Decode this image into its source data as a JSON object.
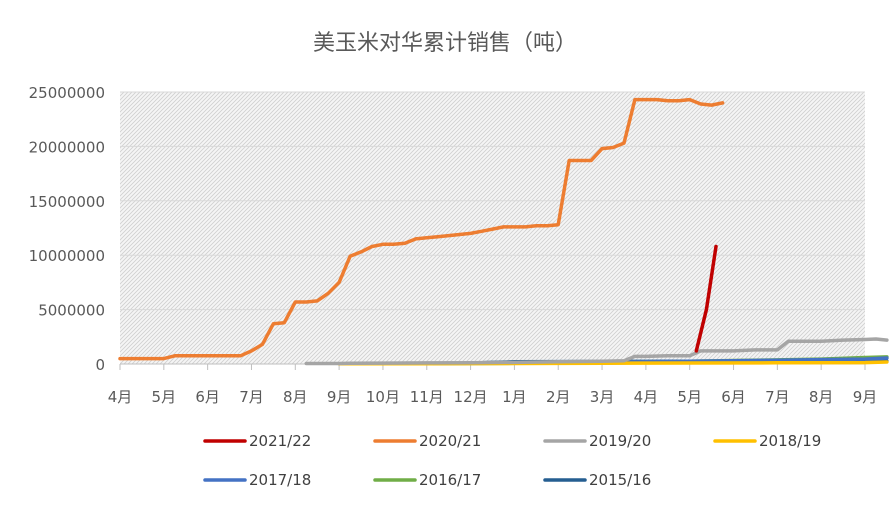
{
  "chart_data": {
    "type": "line",
    "title": "美玉米对华累计销售（吨）",
    "xlabel": "",
    "ylabel": "",
    "ylim": [
      0,
      25000000
    ],
    "yticks": [
      "0",
      "5000000",
      "10000000",
      "15000000",
      "20000000",
      "25000000"
    ],
    "xticks": [
      "4月",
      "5月",
      "6月",
      "7月",
      "8月",
      "9月",
      "10月",
      "11月",
      "12月",
      "1月",
      "2月",
      "3月",
      "4月",
      "5月",
      "6月",
      "7月",
      "8月",
      "9月"
    ],
    "x_unit": "months from first April tick",
    "grid": true,
    "legend_position": "bottom",
    "series": [
      {
        "name": "2021/22",
        "color": "#c00000",
        "points": [
          [
            13.15,
            1200000
          ],
          [
            13.38,
            5000000
          ],
          [
            13.6,
            10800000
          ]
        ]
      },
      {
        "name": "2020/21",
        "color": "#ed7d31",
        "points": [
          [
            0,
            500000
          ],
          [
            0.25,
            500000
          ],
          [
            0.5,
            500000
          ],
          [
            0.75,
            500000
          ],
          [
            1,
            500000
          ],
          [
            1.25,
            750000
          ],
          [
            1.5,
            750000
          ],
          [
            1.75,
            750000
          ],
          [
            2,
            750000
          ],
          [
            2.25,
            750000
          ],
          [
            2.5,
            750000
          ],
          [
            2.75,
            750000
          ],
          [
            3,
            1200000
          ],
          [
            3.25,
            1800000
          ],
          [
            3.5,
            3700000
          ],
          [
            3.75,
            3800000
          ],
          [
            4,
            5700000
          ],
          [
            4.25,
            5700000
          ],
          [
            4.5,
            5800000
          ],
          [
            4.75,
            6500000
          ],
          [
            5,
            7500000
          ],
          [
            5.25,
            9900000
          ],
          [
            5.5,
            10300000
          ],
          [
            5.75,
            10800000
          ],
          [
            6,
            11000000
          ],
          [
            6.25,
            11000000
          ],
          [
            6.5,
            11100000
          ],
          [
            6.75,
            11500000
          ],
          [
            7,
            11600000
          ],
          [
            7.25,
            11700000
          ],
          [
            7.5,
            11800000
          ],
          [
            7.75,
            11900000
          ],
          [
            8,
            12000000
          ],
          [
            8.25,
            12200000
          ],
          [
            8.5,
            12400000
          ],
          [
            8.75,
            12600000
          ],
          [
            9,
            12600000
          ],
          [
            9.25,
            12600000
          ],
          [
            9.5,
            12700000
          ],
          [
            9.75,
            12700000
          ],
          [
            10,
            12800000
          ],
          [
            10.25,
            18700000
          ],
          [
            10.5,
            18700000
          ],
          [
            10.75,
            18700000
          ],
          [
            11,
            19800000
          ],
          [
            11.25,
            19900000
          ],
          [
            11.5,
            20300000
          ],
          [
            11.75,
            24300000
          ],
          [
            12,
            24300000
          ],
          [
            12.25,
            24300000
          ],
          [
            12.5,
            24200000
          ],
          [
            12.75,
            24200000
          ],
          [
            13,
            24300000
          ],
          [
            13.25,
            23900000
          ],
          [
            13.5,
            23800000
          ],
          [
            13.75,
            24000000
          ]
        ]
      },
      {
        "name": "2019/20",
        "color": "#a5a5a5",
        "points": [
          [
            4.25,
            50000
          ],
          [
            4.5,
            50000
          ],
          [
            4.75,
            50000
          ],
          [
            5,
            50000
          ],
          [
            5.25,
            70000
          ],
          [
            6,
            80000
          ],
          [
            7,
            100000
          ],
          [
            8,
            120000
          ],
          [
            9,
            150000
          ],
          [
            10,
            200000
          ],
          [
            11,
            250000
          ],
          [
            11.5,
            300000
          ],
          [
            11.75,
            700000
          ],
          [
            12,
            700000
          ],
          [
            12.5,
            750000
          ],
          [
            13,
            750000
          ],
          [
            13.25,
            1200000
          ],
          [
            13.5,
            1200000
          ],
          [
            14,
            1200000
          ],
          [
            14.5,
            1300000
          ],
          [
            15,
            1300000
          ],
          [
            15.25,
            2100000
          ],
          [
            15.5,
            2100000
          ],
          [
            16,
            2100000
          ],
          [
            16.5,
            2200000
          ],
          [
            17,
            2250000
          ],
          [
            17.25,
            2300000
          ],
          [
            17.5,
            2200000
          ]
        ]
      },
      {
        "name": "2018/19",
        "color": "#ffc000",
        "points": [
          [
            5,
            20000
          ],
          [
            7,
            30000
          ],
          [
            9,
            50000
          ],
          [
            11,
            70000
          ],
          [
            13,
            90000
          ],
          [
            15,
            110000
          ],
          [
            17,
            130000
          ],
          [
            17.5,
            180000
          ]
        ]
      },
      {
        "name": "2017/18",
        "color": "#4472c4",
        "points": [
          [
            5.25,
            20000
          ],
          [
            6,
            30000
          ],
          [
            7,
            40000
          ],
          [
            8,
            60000
          ],
          [
            9,
            80000
          ],
          [
            10,
            100000
          ],
          [
            11,
            150000
          ],
          [
            12,
            200000
          ],
          [
            13,
            250000
          ],
          [
            14,
            300000
          ],
          [
            15,
            350000
          ],
          [
            16,
            400000
          ],
          [
            17,
            450000
          ],
          [
            17.5,
            550000
          ]
        ]
      },
      {
        "name": "2016/17",
        "color": "#70ad47",
        "points": [
          [
            5.25,
            30000
          ],
          [
            7,
            40000
          ],
          [
            9,
            60000
          ],
          [
            11,
            80000
          ],
          [
            12,
            150000
          ],
          [
            13,
            250000
          ],
          [
            14,
            320000
          ],
          [
            15,
            380000
          ],
          [
            16,
            450000
          ],
          [
            17,
            600000
          ],
          [
            17.5,
            650000
          ]
        ]
      },
      {
        "name": "2015/16",
        "color": "#255e91",
        "points": [
          [
            5.25,
            20000
          ],
          [
            6,
            30000
          ],
          [
            7,
            50000
          ],
          [
            8,
            80000
          ],
          [
            8.5,
            150000
          ],
          [
            9,
            200000
          ],
          [
            10,
            220000
          ],
          [
            11,
            230000
          ],
          [
            12,
            240000
          ],
          [
            13,
            250000
          ],
          [
            14,
            250000
          ],
          [
            15,
            260000
          ],
          [
            16,
            260000
          ],
          [
            17,
            270000
          ],
          [
            17.5,
            270000
          ]
        ]
      }
    ]
  }
}
